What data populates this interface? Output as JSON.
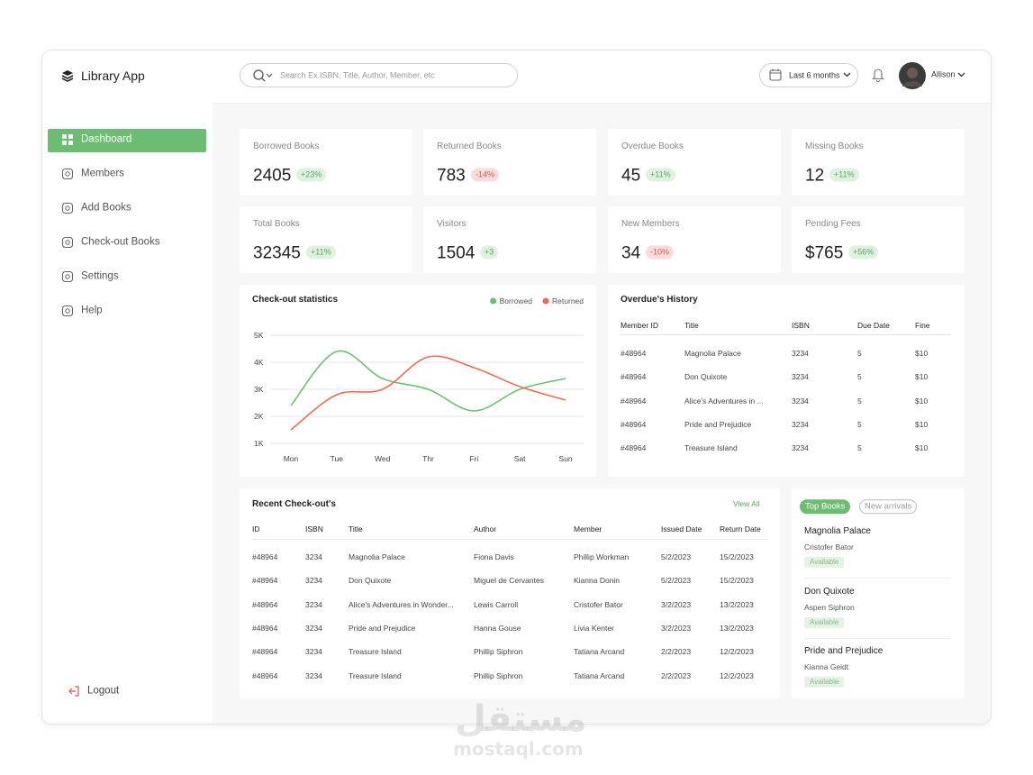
{
  "app": {
    "name": "Library App"
  },
  "search": {
    "placeholder": "Search Ex.ISBN, Title, Author, Member, etc"
  },
  "period": "Last 6 months",
  "user": "Allison",
  "nav": [
    "Dashboard",
    "Members",
    "Add Books",
    "Check-out Books",
    "Settings",
    "Help"
  ],
  "logout": "Logout",
  "stats": [
    {
      "label": "Borrowed Books",
      "value": "2405",
      "change": "+23%"
    },
    {
      "label": "Returned Books",
      "value": "783",
      "change": "-14%"
    },
    {
      "label": "Overdue Books",
      "value": "45",
      "change": "+11%"
    },
    {
      "label": "Missing Books",
      "value": "12",
      "change": "+11%"
    },
    {
      "label": "Total Books",
      "value": "32345",
      "change": "+11%"
    },
    {
      "label": "Visitors",
      "value": "1504",
      "change": "+3"
    },
    {
      "label": "New Members",
      "value": "34",
      "change": "-10%"
    },
    {
      "label": "Pending Fees",
      "value": "$765",
      "change": "+56%"
    }
  ],
  "chart_data": {
    "type": "line",
    "title": "Check-out statistics",
    "categories": [
      "Mon",
      "Tue",
      "Wed",
      "Thr",
      "Fri",
      "Sat",
      "Sun"
    ],
    "series": [
      {
        "name": "Borrowed",
        "color": "#6cc070",
        "values": [
          2400,
          4400,
          3400,
          3000,
          2200,
          3000,
          3400
        ]
      },
      {
        "name": "Returned",
        "color": "#ef6a55",
        "values": [
          1500,
          2800,
          3000,
          4200,
          3800,
          3100,
          2600
        ]
      }
    ],
    "ylim": [
      1000,
      5000
    ],
    "yticks": [
      {
        "value": 1000,
        "label": "1K"
      },
      {
        "value": 2000,
        "label": "2K"
      },
      {
        "value": 3000,
        "label": "3K"
      },
      {
        "value": 4000,
        "label": "4K"
      },
      {
        "value": 5000,
        "label": "5K"
      }
    ],
    "grid": true,
    "legend": "top-right"
  },
  "overdue": {
    "title": "Overdue's History",
    "columns": [
      "Member ID",
      "Title",
      "ISBN",
      "Due Date",
      "Fine"
    ],
    "rows": [
      [
        "#48964",
        "Magnolia Palace",
        "3234",
        "5",
        "$10"
      ],
      [
        "#48964",
        "Don Quixote",
        "3234",
        "5",
        "$10"
      ],
      [
        "#48964",
        "Alice's Adventures in ...",
        "3234",
        "5",
        "$10"
      ],
      [
        "#48964",
        "Pride and Prejudice",
        "3234",
        "5",
        "$10"
      ],
      [
        "#48964",
        "Treasure Island",
        "3234",
        "5",
        "$10"
      ]
    ]
  },
  "recent": {
    "title": "Recent Check-out's",
    "view_all": "View All",
    "columns": [
      "ID",
      "ISBN",
      "Title",
      "Author",
      "Member",
      "Issued Date",
      "Return Date"
    ],
    "rows": [
      [
        "#48964",
        "3234",
        "Magnolia Palace",
        "Fiona Davis",
        "Phillip Workman",
        "5/2/2023",
        "15/2/2023"
      ],
      [
        "#48964",
        "3234",
        "Don Quixote",
        "Miguel de Cervantes",
        "Kianna Donin",
        "5/2/2023",
        "15/2/2023"
      ],
      [
        "#48964",
        "3234",
        "Alice's Adventures in Wonder...",
        "Lewis Carroll",
        "Cristofer Bator",
        "3/2/2023",
        "13/2/2023"
      ],
      [
        "#48964",
        "3234",
        "Pride and Prejudice",
        "Hanna Gouse",
        "Livia Kenter",
        "3/2/2023",
        "13/2/2023"
      ],
      [
        "#48964",
        "3234",
        "Treasure Island",
        "Phillip Siphron",
        "Tatiana Arcand",
        "2/2/2023",
        "12/2/2023"
      ],
      [
        "#48964",
        "3234",
        "Treasure Island",
        "Phillip Siphron",
        "Tatiana Arcand",
        "2/2/2023",
        "12/2/2023"
      ]
    ]
  },
  "top_books": {
    "tabs": [
      "Top Books",
      "New arrivals"
    ],
    "items": [
      {
        "title": "Magnolia Palace",
        "author": "Cristofer Bator",
        "status": "Available"
      },
      {
        "title": "Don Quixote",
        "author": "Aspen Siphron",
        "status": "Available"
      },
      {
        "title": "Pride and Prejudice",
        "author": "Kianna Geidt",
        "status": "Available"
      }
    ]
  },
  "watermark": {
    "arabic": "مستقل",
    "latin": "mostaql.com"
  }
}
